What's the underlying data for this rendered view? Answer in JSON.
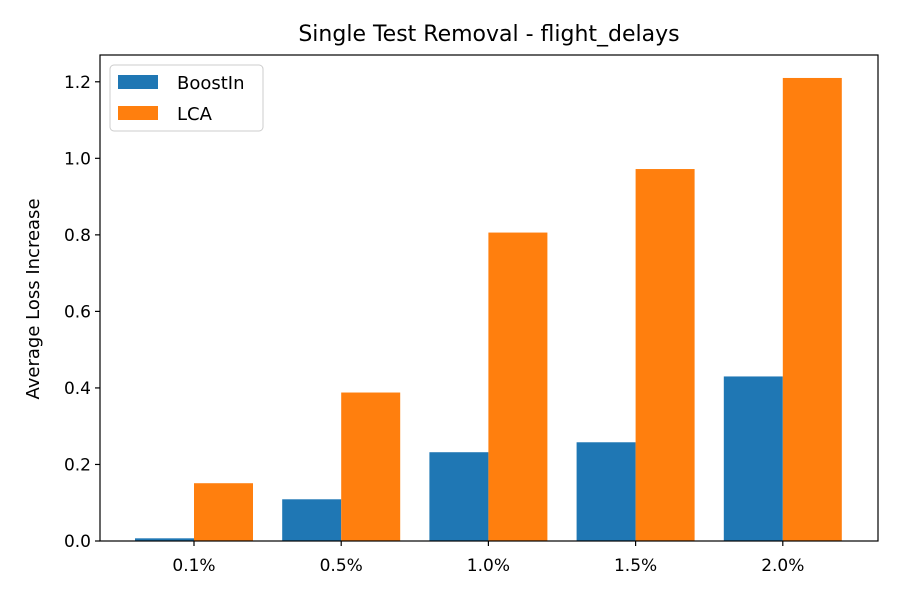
{
  "chart_data": {
    "type": "bar",
    "title": "Single Test Removal - flight_delays",
    "xlabel": "",
    "ylabel": "Average Loss Increase",
    "categories": [
      "0.1%",
      "0.5%",
      "1.0%",
      "1.5%",
      "2.0%"
    ],
    "ylim": [
      0,
      1.27
    ],
    "yticks": [
      0.0,
      0.2,
      0.4,
      0.6,
      0.8,
      1.0,
      1.2
    ],
    "ytick_labels": [
      "0.0",
      "0.2",
      "0.4",
      "0.6",
      "0.8",
      "1.0",
      "1.2"
    ],
    "grid": false,
    "legend_position": "top-left",
    "series": [
      {
        "name": "BoostIn",
        "color": "#1f77b4",
        "values": [
          0.007,
          0.109,
          0.232,
          0.258,
          0.43
        ]
      },
      {
        "name": "LCA",
        "color": "#ff7f0e",
        "values": [
          0.151,
          0.388,
          0.806,
          0.972,
          1.21
        ]
      }
    ]
  }
}
